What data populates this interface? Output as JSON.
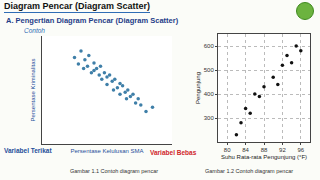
{
  "header": {
    "title": "Diagram Pencar (Diagram Scatter)"
  },
  "section": "A. Pengertian Diagram Pencar (Diagram Scatter)",
  "example_label": "Contoh",
  "chart_data": [
    {
      "type": "scatter",
      "x_label": "Persentase Kelulusan SMA",
      "y_label": "Persentase Kriminalitas",
      "annotations": [
        "Variabel Terikat",
        "Variabel Bebas"
      ],
      "caption": "Gambar 1.1 Contoh diagram pencar",
      "x": [
        25,
        28,
        30,
        32,
        33,
        35,
        36,
        38,
        40,
        40,
        42,
        44,
        45,
        46,
        48,
        50,
        50,
        52,
        54,
        55,
        56,
        58,
        60,
        60,
        62,
        64,
        65,
        66,
        68,
        70,
        72,
        74,
        76,
        80,
        85
      ],
      "values": [
        80,
        74,
        86,
        70,
        78,
        72,
        82,
        66,
        75,
        68,
        70,
        64,
        72,
        60,
        66,
        62,
        55,
        64,
        58,
        50,
        60,
        52,
        56,
        46,
        54,
        48,
        42,
        50,
        44,
        46,
        38,
        42,
        36,
        30,
        34
      ],
      "color": "#3f7fa8",
      "marker": "circle",
      "xlim": [
        0,
        100
      ],
      "ylim": [
        0,
        100
      ],
      "tick_labels": false,
      "grid": false
    },
    {
      "type": "scatter",
      "x_label": "Suhu Rata-rata Pengunjung (°F)",
      "y_label": "Pengunjung",
      "caption": "Gambar 1.2 Contoh diagram pencar",
      "x": [
        82,
        83,
        84,
        85,
        86,
        87,
        88,
        90,
        91,
        92,
        93,
        94,
        95,
        96
      ],
      "values": [
        230,
        280,
        340,
        320,
        400,
        390,
        430,
        470,
        440,
        520,
        560,
        530,
        600,
        580
      ],
      "color": "#111111",
      "marker": "circle",
      "xlim": [
        78,
        98
      ],
      "ylim": [
        200,
        650
      ],
      "xticks": [
        80,
        84,
        88,
        92,
        96
      ],
      "yticks": [
        300,
        400,
        500,
        600
      ],
      "grid": true
    }
  ]
}
